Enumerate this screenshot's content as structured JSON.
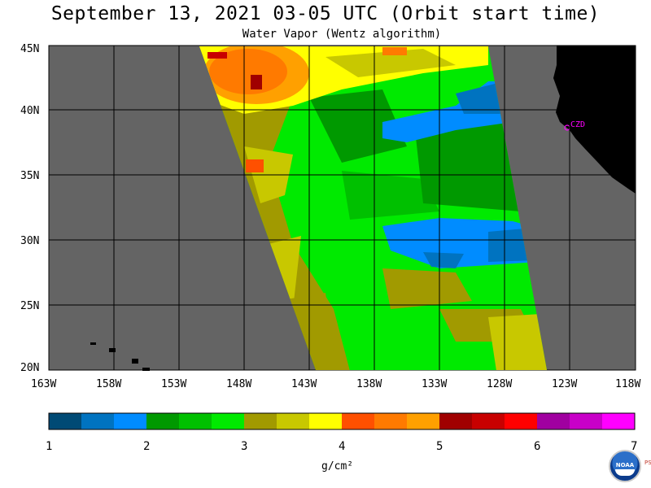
{
  "header": {
    "title": "September 13, 2021  03-05 UTC  (Orbit start time)",
    "subtitle": "Water Vapor (Wentz algorithm)"
  },
  "map": {
    "lat_labels": [
      "45N",
      "40N",
      "35N",
      "30N",
      "25N",
      "20N"
    ],
    "lon_labels": [
      "163W",
      "158W",
      "153W",
      "148W",
      "143W",
      "138W",
      "133W",
      "128W",
      "123W",
      "118W"
    ],
    "station_label": "CZD",
    "colors": {
      "ocean_missing": "#646464",
      "land": "#000000",
      "grid": "#000000",
      "station": "#ff00ff"
    }
  },
  "colorbar": {
    "tick_labels": [
      "1",
      "2",
      "3",
      "4",
      "5",
      "6",
      "7"
    ],
    "unit": "g/cm²",
    "colors": [
      "#004a75",
      "#0073c0",
      "#008cff",
      "#009900",
      "#00c000",
      "#00ea00",
      "#a19a00",
      "#c8c800",
      "#ffff00",
      "#ff5000",
      "#ff7a00",
      "#ffa000",
      "#a00000",
      "#c80000",
      "#ff0000",
      "#a000a0",
      "#c800c8",
      "#ff00ff"
    ]
  },
  "logo": {
    "text": "NOAA",
    "side_text": "PSL"
  }
}
